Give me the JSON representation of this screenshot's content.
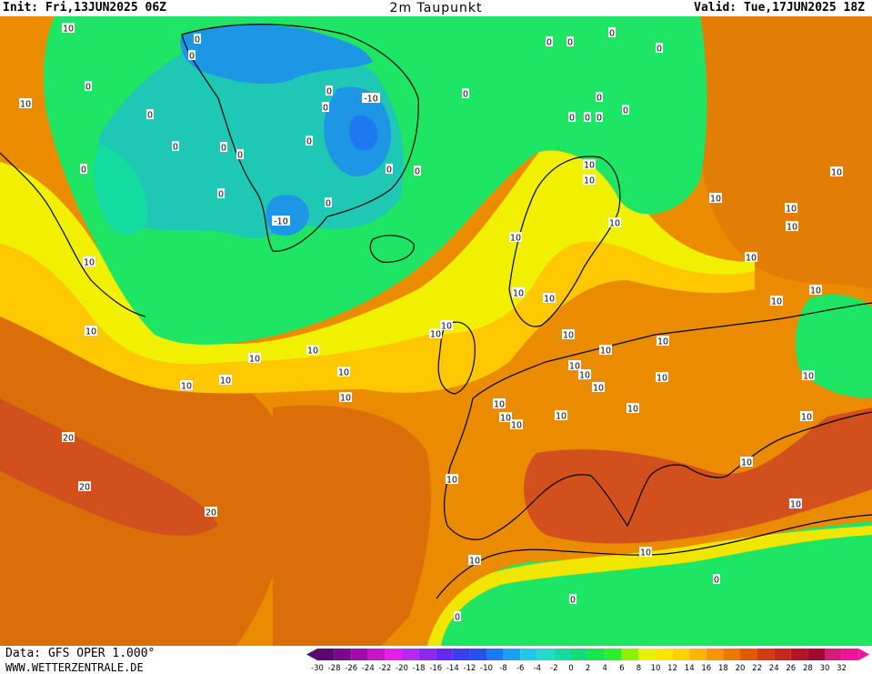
{
  "header": {
    "init": "Init: Fri,13JUN2025 06Z",
    "title": "2m Taupunkt",
    "valid": "Valid: Tue,17JUN2025 18Z"
  },
  "footer": {
    "data_source": "Data: GFS OPER 1.000°",
    "website": "WWW.WETTERZENTRALE.DE"
  },
  "colorbar": {
    "ticks": [
      "-30",
      "-28",
      "-26",
      "-24",
      "-22",
      "-20",
      "-18",
      "-16",
      "-14",
      "-12",
      "-10",
      "-8",
      "-6",
      "-4",
      "-2",
      "0",
      "2",
      "4",
      "6",
      "8",
      "10",
      "12",
      "14",
      "16",
      "18",
      "20",
      "22",
      "24",
      "26",
      "28",
      "30",
      "32"
    ],
    "colors": [
      "#5a0a6e",
      "#7a0a8c",
      "#a00aa8",
      "#c814c8",
      "#e61ee6",
      "#b428f0",
      "#8c28f0",
      "#6428f0",
      "#3c3cf0",
      "#2850f0",
      "#1e78f0",
      "#1ea0f0",
      "#1ec8e6",
      "#1edcc8",
      "#14dca0",
      "#14dc78",
      "#14e650",
      "#28f028",
      "#8cf000",
      "#e6f000",
      "#ffe600",
      "#ffd200",
      "#ffb400",
      "#f59600",
      "#eb7800",
      "#e15a00",
      "#d23c14",
      "#c3281e",
      "#b41428",
      "#a00a32",
      "#d21e78",
      "#f0149b"
    ]
  },
  "contour_labels": [
    "10",
    "0",
    "-10",
    "20"
  ],
  "colors": {
    "green": "#1ee664",
    "cyan": "#1ec8b4",
    "blue": "#1e96e6",
    "yellow": "#f0f000",
    "orange": "#eb8c00",
    "dark_orange": "#dc6e0a",
    "red_orange": "#d2501e"
  }
}
